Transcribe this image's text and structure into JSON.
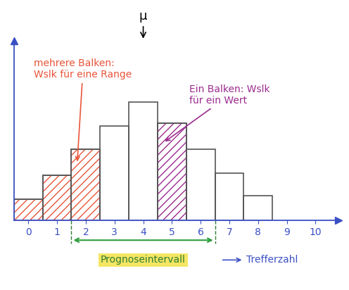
{
  "chart_data": {
    "type": "bar",
    "x": [
      0,
      1,
      2,
      3,
      4,
      5,
      6,
      7,
      8
    ],
    "values": [
      0.9,
      1.9,
      3.0,
      4.0,
      5.0,
      4.1,
      3.0,
      2.0,
      1.05
    ],
    "xlim": [
      -0.5,
      10.8
    ],
    "xticks": [
      0,
      1,
      2,
      3,
      4,
      5,
      6,
      7,
      8,
      9,
      10
    ],
    "ylim": [
      0,
      7.6
    ],
    "tick_labels": "x",
    "grid": false,
    "x_label": "Trefferzahl",
    "mu": {
      "text": "μ",
      "x": 4
    },
    "interval": {
      "label": "Prognoseintervall",
      "range": [
        2,
        6
      ],
      "color": "#2e9e3e",
      "highlight": "#f5e663"
    },
    "annotations": [
      {
        "text": "mehrere Balken:\nWslk für eine Range",
        "color": "#e8553a",
        "bars": [
          0,
          1,
          2
        ]
      },
      {
        "text": "Ein Balken: Wslk\nfür ein Wert",
        "color": "#9b2c8f",
        "bars": [
          5
        ]
      }
    ]
  }
}
